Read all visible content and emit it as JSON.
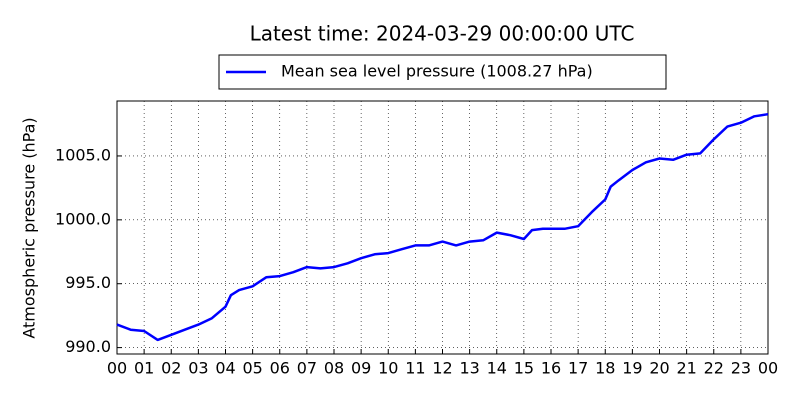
{
  "chart_data": {
    "type": "line",
    "title": "Latest time: 2024-03-29 00:00:00 UTC",
    "y_label": "Atmospheric pressure (hPa)",
    "x": [
      0,
      0.5,
      1,
      1.5,
      2,
      2.5,
      3,
      3.5,
      4,
      4.2,
      4.5,
      5,
      5.5,
      6,
      6.5,
      7,
      7.5,
      8,
      8.5,
      9,
      9.5,
      10,
      10.5,
      11,
      11.5,
      12,
      12.5,
      13,
      13.5,
      14,
      14.5,
      15,
      15.3,
      15.7,
      16,
      16.5,
      17,
      17.5,
      18,
      18.2,
      18.5,
      19,
      19.5,
      20,
      20.5,
      21,
      21.5,
      22,
      22.5,
      23,
      23.5,
      24
    ],
    "series": [
      {
        "name": "Mean sea level pressure (1008.27 hPa)",
        "color": "#0000ff",
        "values": [
          991.8,
          991.4,
          991.3,
          990.6,
          991.0,
          991.4,
          991.8,
          992.3,
          993.2,
          994.1,
          994.5,
          994.8,
          995.5,
          995.6,
          995.9,
          996.3,
          996.2,
          996.3,
          996.6,
          997.0,
          997.3,
          997.4,
          997.7,
          998.0,
          998.0,
          998.3,
          998.0,
          998.3,
          998.4,
          999.0,
          998.8,
          998.5,
          999.2,
          999.3,
          999.3,
          999.3,
          999.5,
          1000.6,
          1001.6,
          1002.6,
          1003.1,
          1003.9,
          1004.5,
          1004.8,
          1004.7,
          1005.1,
          1005.2,
          1006.3,
          1007.3,
          1007.6,
          1008.1,
          1008.27
        ]
      }
    ],
    "xlim": [
      0,
      24
    ],
    "xticks": [
      {
        "value": 0,
        "label": "00"
      },
      {
        "value": 1,
        "label": "01"
      },
      {
        "value": 2,
        "label": "02"
      },
      {
        "value": 3,
        "label": "03"
      },
      {
        "value": 4,
        "label": "04"
      },
      {
        "value": 5,
        "label": "05"
      },
      {
        "value": 6,
        "label": "06"
      },
      {
        "value": 7,
        "label": "07"
      },
      {
        "value": 8,
        "label": "08"
      },
      {
        "value": 9,
        "label": "09"
      },
      {
        "value": 10,
        "label": "10"
      },
      {
        "value": 11,
        "label": "11"
      },
      {
        "value": 12,
        "label": "12"
      },
      {
        "value": 13,
        "label": "13"
      },
      {
        "value": 14,
        "label": "14"
      },
      {
        "value": 15,
        "label": "15"
      },
      {
        "value": 16,
        "label": "16"
      },
      {
        "value": 17,
        "label": "17"
      },
      {
        "value": 18,
        "label": "18"
      },
      {
        "value": 19,
        "label": "19"
      },
      {
        "value": 20,
        "label": "20"
      },
      {
        "value": 21,
        "label": "21"
      },
      {
        "value": 22,
        "label": "22"
      },
      {
        "value": 23,
        "label": "23"
      },
      {
        "value": 24,
        "label": "00"
      }
    ],
    "ylim": [
      989.5,
      1009.3
    ],
    "yticks": [
      {
        "value": 990,
        "label": "990.0"
      },
      {
        "value": 995,
        "label": "995.0"
      },
      {
        "value": 1000,
        "label": "1000.0"
      },
      {
        "value": 1005,
        "label": "1005.0"
      }
    ],
    "grid": true,
    "legend": "top"
  }
}
